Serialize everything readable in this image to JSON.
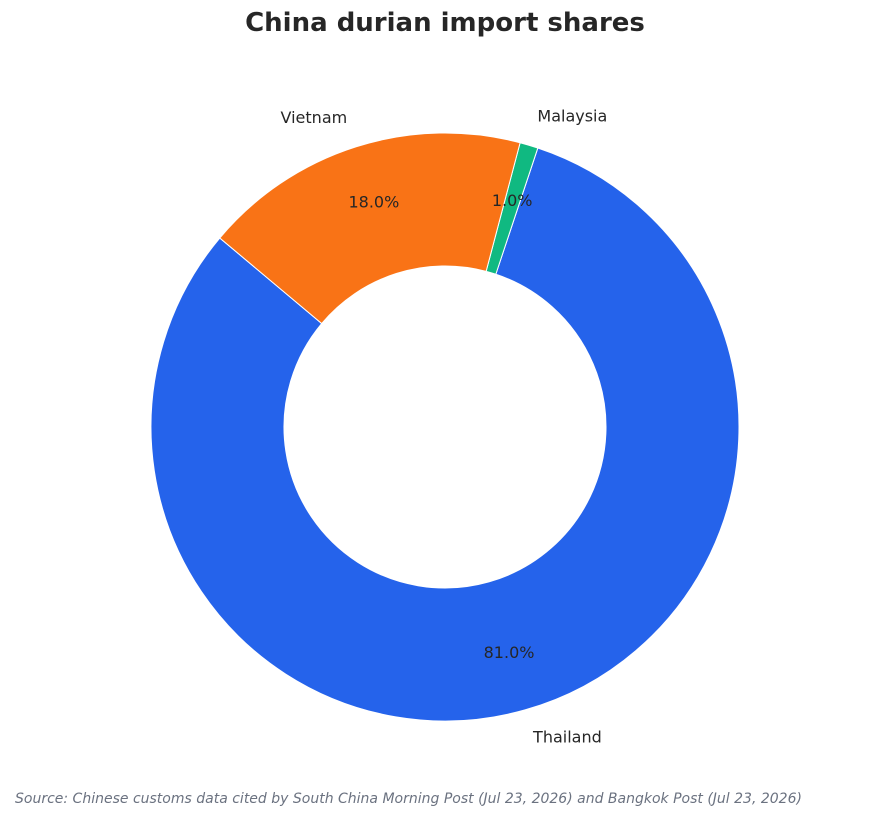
{
  "chart_data": {
    "type": "pie",
    "title": "China durian import shares",
    "donut": true,
    "slices": [
      {
        "label": "Thailand",
        "value": 81.0,
        "pct_label": "81.0%",
        "color": "#2563eb"
      },
      {
        "label": "Malaysia",
        "value": 1.0,
        "pct_label": "1.0%",
        "color": "#10b981"
      },
      {
        "label": "Vietnam",
        "value": 18.0,
        "pct_label": "18.0%",
        "color": "#f97316"
      }
    ],
    "legend": "none"
  },
  "footnote": "Source: Chinese customs data cited by South China Morning Post (Jul 23, 2026) and Bangkok Post (Jul 23, 2026)"
}
